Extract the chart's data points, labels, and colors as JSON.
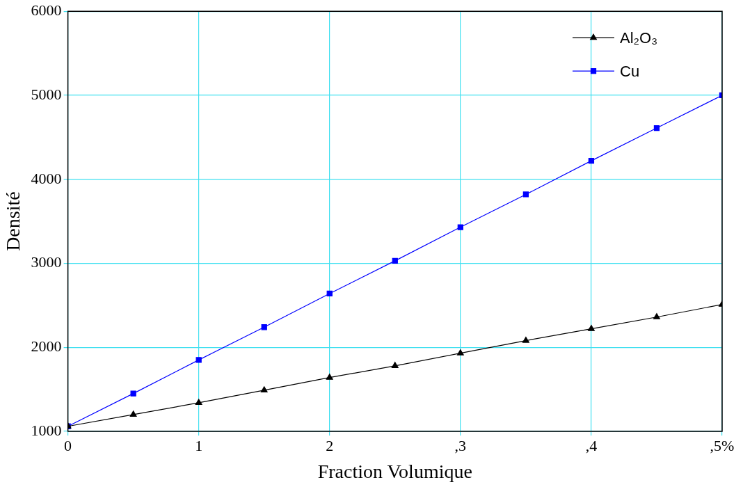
{
  "chart_data": {
    "type": "line",
    "xlabel": "Fraction Volumique",
    "ylabel": "Densité",
    "x": [
      0,
      0.5,
      1,
      1.5,
      2,
      2.5,
      3,
      3.5,
      4,
      4.5,
      5
    ],
    "series": [
      {
        "name": "Al₂O₃",
        "color": "#000000",
        "marker": "triangle",
        "values": [
          1060,
          1200,
          1340,
          1490,
          1640,
          1780,
          1930,
          2080,
          2220,
          2360,
          2510
        ]
      },
      {
        "name": "Cu",
        "color": "#0000ff",
        "marker": "square",
        "values": [
          1060,
          1450,
          1850,
          2240,
          2640,
          3030,
          3430,
          3820,
          4220,
          4610,
          5000
        ]
      }
    ],
    "xlim": [
      0,
      5
    ],
    "xticks": [
      0,
      1,
      2,
      {
        "value": 3,
        "label": ",3"
      },
      {
        "value": 4,
        "label": ",4"
      },
      {
        "value": 5,
        "label": ",5%"
      }
    ],
    "ylim": [
      1000,
      6000
    ],
    "yticks": [
      1000,
      2000,
      3000,
      4000,
      5000,
      6000
    ],
    "grid": true,
    "legend": "top right"
  }
}
